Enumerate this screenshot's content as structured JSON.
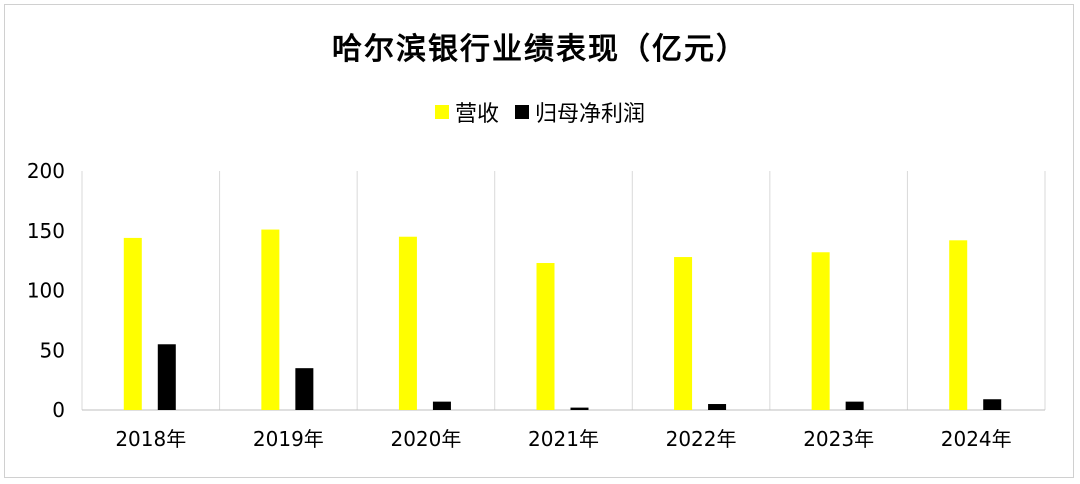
{
  "chart_data": {
    "type": "bar",
    "title": "哈尔滨银行业绩表现（亿元）",
    "categories": [
      "2018年",
      "2019年",
      "2020年",
      "2021年",
      "2022年",
      "2023年",
      "2024年"
    ],
    "series": [
      {
        "name": "营收",
        "color": "#ffff00",
        "values": [
          144,
          151,
          145,
          123,
          128,
          132,
          142
        ]
      },
      {
        "name": "归母净利润",
        "color": "#000000",
        "values": [
          55,
          35,
          7,
          2,
          5,
          7,
          9
        ]
      }
    ],
    "ylim": [
      0,
      200
    ],
    "yticks": [
      0,
      50,
      100,
      150,
      200
    ],
    "xlabel": "",
    "ylabel": "",
    "legend_position": "top-center",
    "grid": "vertical-category-separators"
  }
}
